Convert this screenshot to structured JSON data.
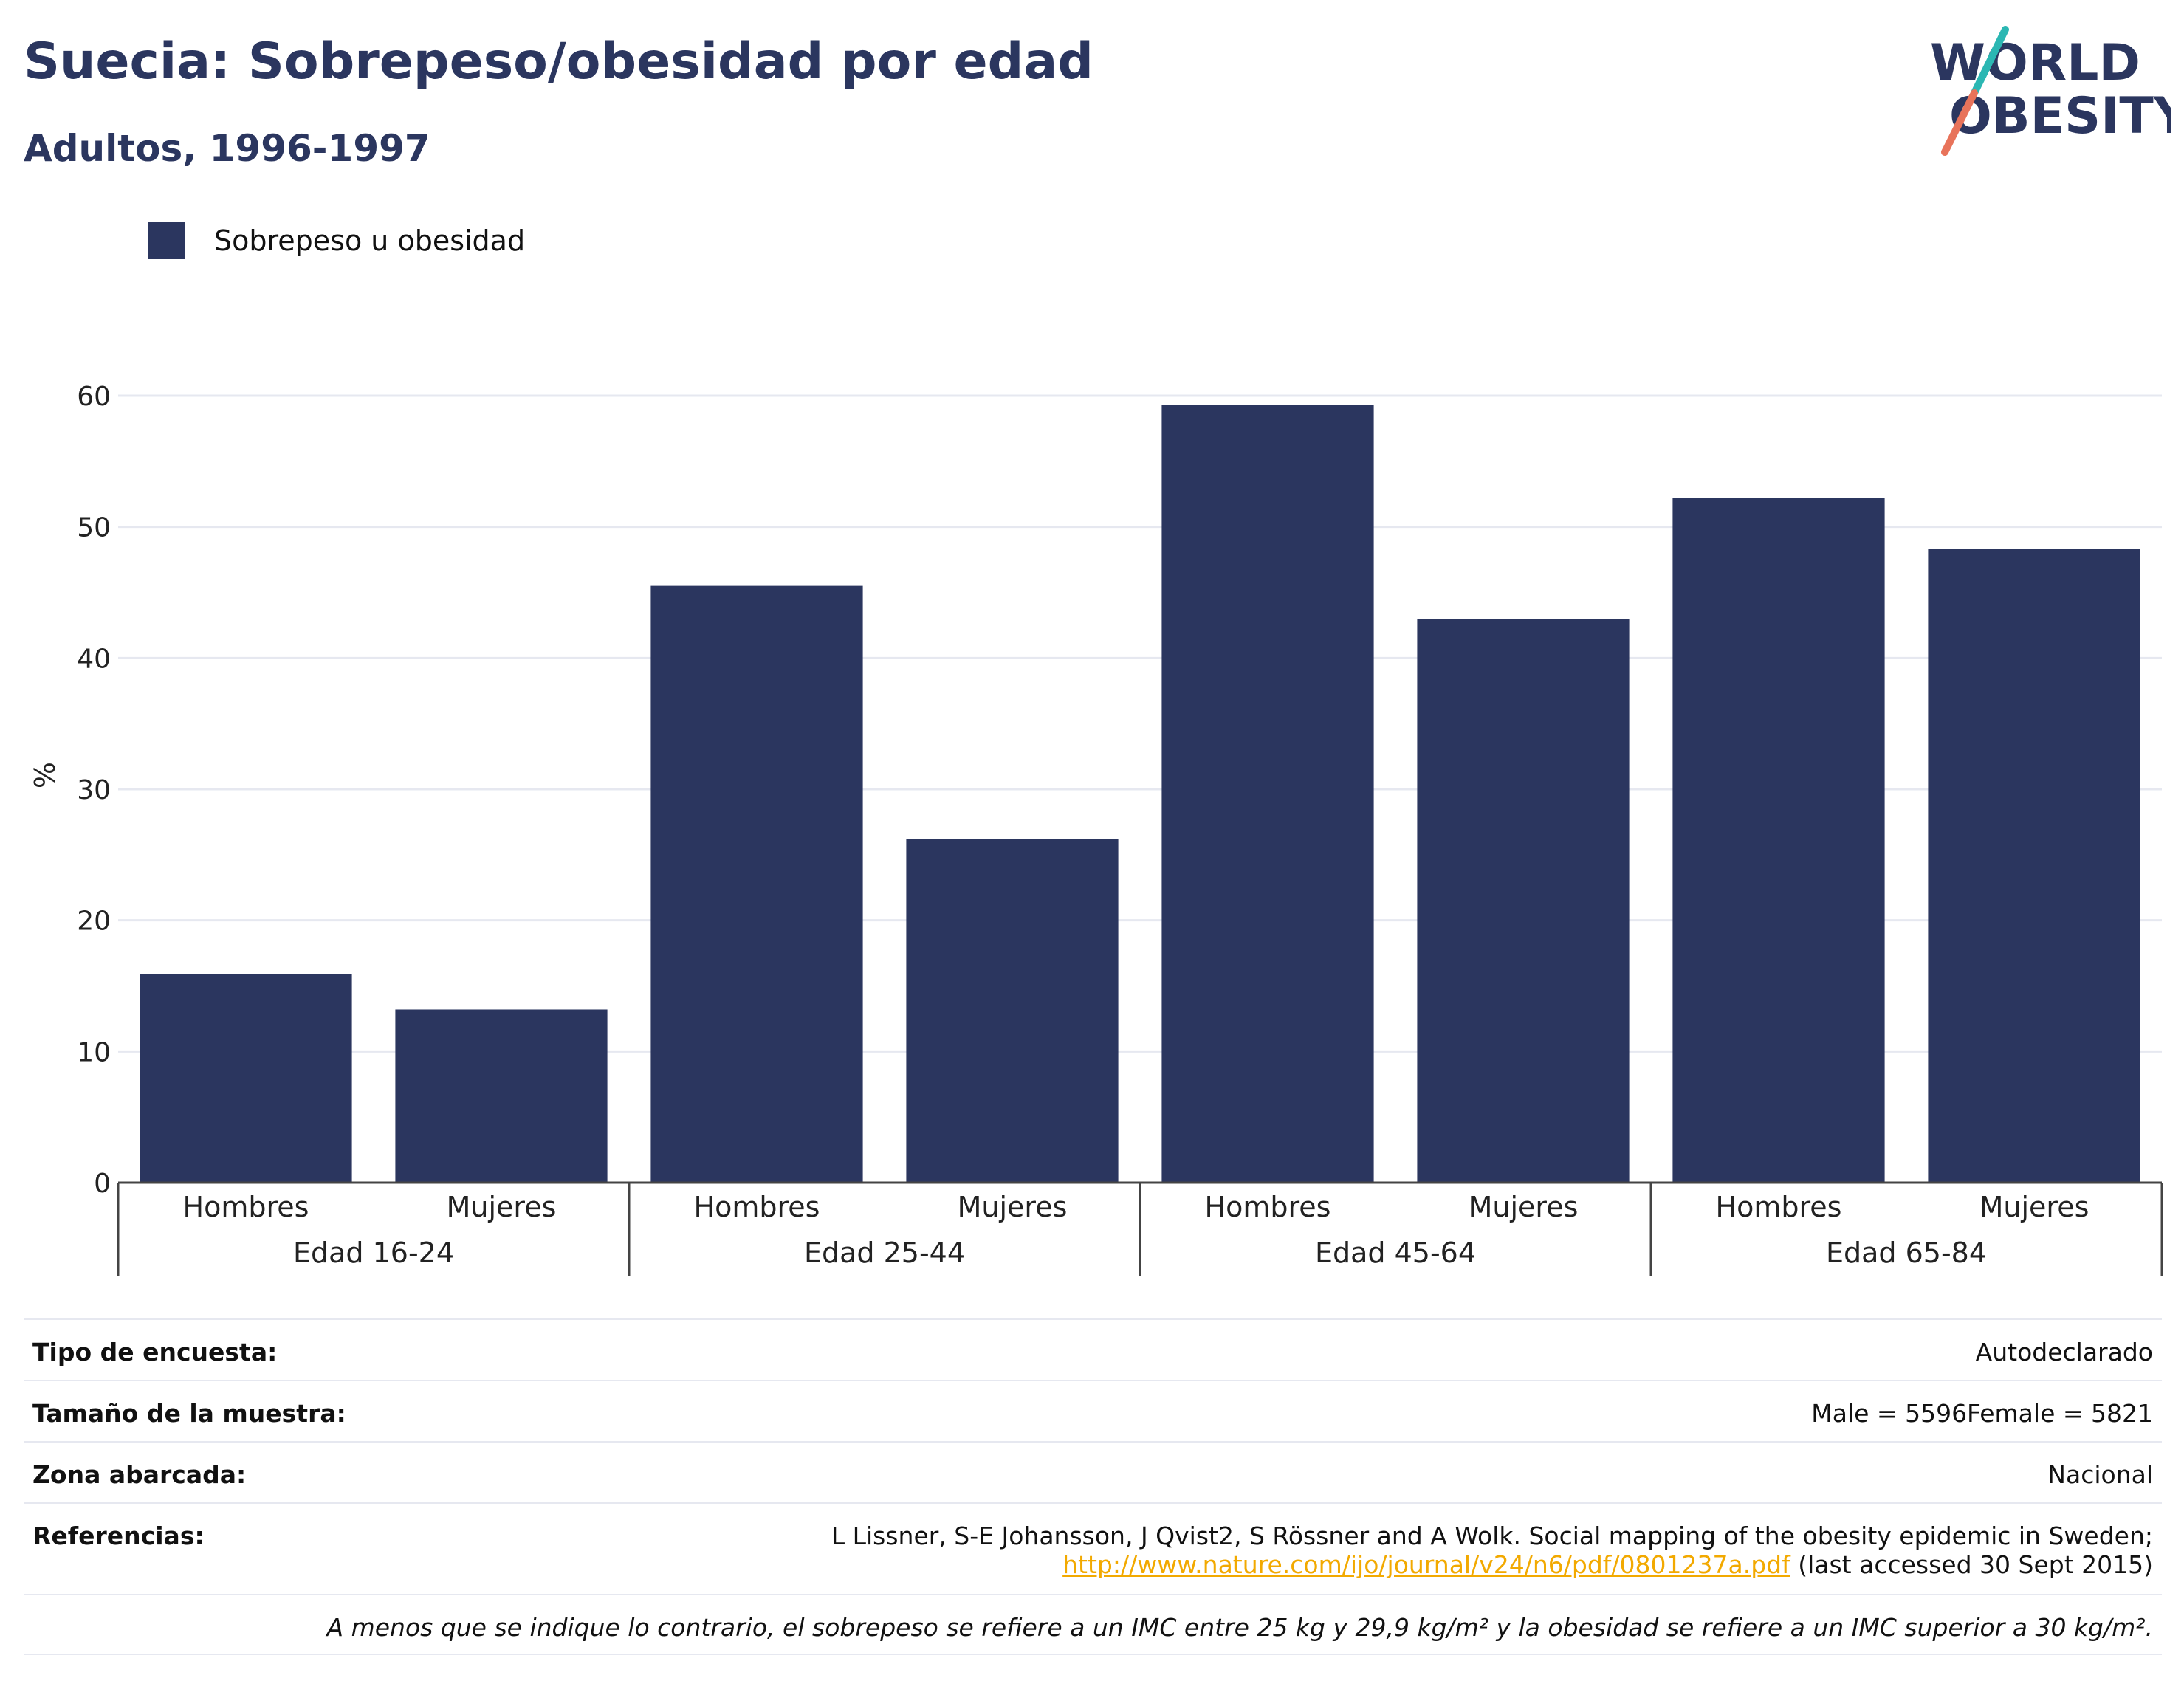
{
  "header": {
    "title": "Suecia: Sobrepeso/obesidad por edad",
    "subtitle": "Adultos, 1996-1997"
  },
  "logo": {
    "line1": "WORLD",
    "line2": "OBESITY"
  },
  "colors": {
    "bar": "#2b365f",
    "title": "#2b365f",
    "grid": "#e6e8f0",
    "link": "#f2a900",
    "logo_teal": "#2bb7b3",
    "logo_coral": "#e8735a"
  },
  "chart_data": {
    "type": "bar",
    "legend": [
      "Sobrepeso u obesidad"
    ],
    "legend_position": "top-left",
    "ylabel": "%",
    "ylim": [
      0,
      63
    ],
    "yticks": [
      0,
      10,
      20,
      30,
      40,
      50,
      60
    ],
    "grid": true,
    "groups": [
      {
        "label": "Edad 16-24",
        "categories": [
          "Hombres",
          "Mujeres"
        ]
      },
      {
        "label": "Edad 25-44",
        "categories": [
          "Hombres",
          "Mujeres"
        ]
      },
      {
        "label": "Edad 45-64",
        "categories": [
          "Hombres",
          "Mujeres"
        ]
      },
      {
        "label": "Edad 65-84",
        "categories": [
          "Hombres",
          "Mujeres"
        ]
      }
    ],
    "series": [
      {
        "name": "Sobrepeso u obesidad",
        "values": [
          15.9,
          13.2,
          45.5,
          26.2,
          59.3,
          43.0,
          52.2,
          48.3
        ]
      }
    ]
  },
  "info": {
    "survey_type_label": "Tipo de encuesta:",
    "survey_type_value": "Autodeclarado",
    "sample_size_label": "Tamaño de la muestra:",
    "sample_size_value": "Male = 5596Female = 5821",
    "area_label": "Zona abarcada:",
    "area_value": "Nacional",
    "references_label": "Referencias:",
    "reference_text": "L Lissner, S-E Johansson, J Qvist2, S Rössner and A Wolk. Social mapping of the obesity epidemic in Sweden;",
    "reference_link": "http://www.nature.com/ijo/journal/v24/n6/pdf/0801237a.pdf",
    "reference_accessed": " (last accessed 30 Sept 2015)",
    "footnote": "A menos que se indique lo contrario, el sobrepeso se refiere a un IMC entre 25 kg y 29,9 kg/m² y la obesidad se refiere a un IMC superior a 30 kg/m²."
  }
}
